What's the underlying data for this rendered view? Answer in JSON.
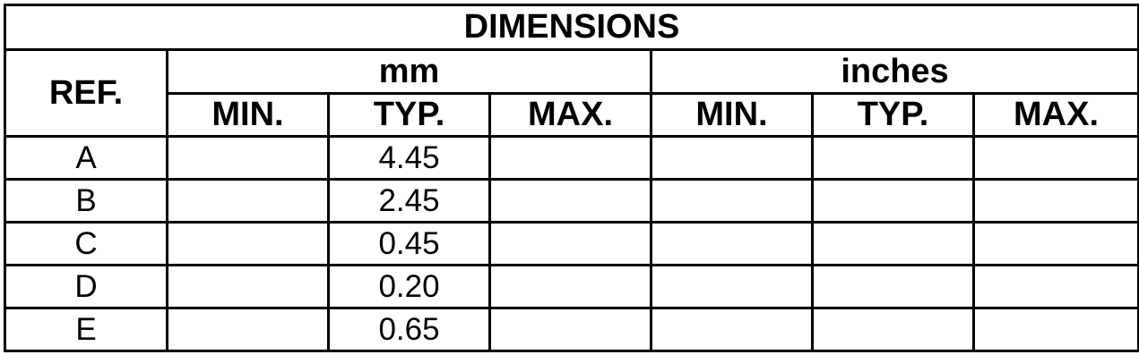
{
  "title": "DIMENSIONS",
  "headers": {
    "ref": "REF.",
    "mm": "mm",
    "inches": "inches",
    "mm_cols": [
      "MIN.",
      "TYP.",
      "MAX."
    ],
    "inch_cols": [
      "MIN.",
      "TYP.",
      "MAX."
    ]
  },
  "rows": [
    {
      "ref": "A",
      "mm_min": "",
      "mm_typ": "4.45",
      "mm_max": "",
      "in_min": "",
      "in_typ": "",
      "in_max": ""
    },
    {
      "ref": "B",
      "mm_min": "",
      "mm_typ": "2.45",
      "mm_max": "",
      "in_min": "",
      "in_typ": "",
      "in_max": ""
    },
    {
      "ref": "C",
      "mm_min": "",
      "mm_typ": "0.45",
      "mm_max": "",
      "in_min": "",
      "in_typ": "",
      "in_max": ""
    },
    {
      "ref": "D",
      "mm_min": "",
      "mm_typ": "0.20",
      "mm_max": "",
      "in_min": "",
      "in_typ": "",
      "in_max": ""
    },
    {
      "ref": "E",
      "mm_min": "",
      "mm_typ": "0.65",
      "mm_max": "",
      "in_min": "",
      "in_typ": "",
      "in_max": ""
    }
  ]
}
